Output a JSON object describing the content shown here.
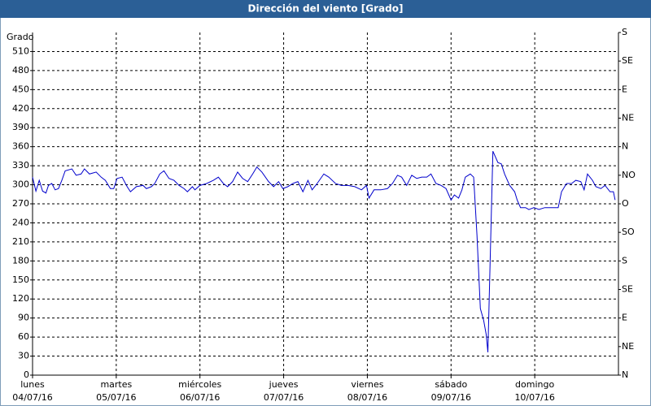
{
  "chart_data": {
    "type": "line",
    "title": "Dirección del viento [Grado]",
    "y_label": "Grado",
    "color": "#0000cc",
    "grid": true,
    "xlim": [
      0,
      7
    ],
    "xticks": [
      {
        "value": 0,
        "label": "lunes"
      },
      {
        "value": 1,
        "label": "martes"
      },
      {
        "value": 2,
        "label": "miércoles"
      },
      {
        "value": 3,
        "label": "jueves"
      },
      {
        "value": 4,
        "label": "viernes"
      },
      {
        "value": 5,
        "label": "sábado"
      },
      {
        "value": 6,
        "label": "domingo"
      }
    ],
    "xtick_dates": [
      "04/07/16",
      "05/07/16",
      "06/07/16",
      "07/07/16",
      "08/07/16",
      "09/07/16",
      "10/07/16"
    ],
    "ylim": [
      0,
      540
    ],
    "yticks": [
      0,
      30,
      60,
      90,
      120,
      150,
      180,
      210,
      240,
      270,
      300,
      330,
      360,
      390,
      420,
      450,
      480,
      510
    ],
    "y2lim": [
      0,
      540
    ],
    "y2ticks": [
      {
        "value": 0,
        "label": "N"
      },
      {
        "value": 45,
        "label": "NE"
      },
      {
        "value": 90,
        "label": "E"
      },
      {
        "value": 135,
        "label": "SE"
      },
      {
        "value": 180,
        "label": "S"
      },
      {
        "value": 225,
        "label": "SO"
      },
      {
        "value": 270,
        "label": "O"
      },
      {
        "value": 315,
        "label": "NO"
      },
      {
        "value": 360,
        "label": "N"
      },
      {
        "value": 405,
        "label": "NE"
      },
      {
        "value": 450,
        "label": "E"
      },
      {
        "value": 495,
        "label": "SE"
      },
      {
        "value": 540,
        "label": "S"
      }
    ],
    "x": [
      0,
      0.04,
      0.08,
      0.12,
      0.16,
      0.19,
      0.23,
      0.27,
      0.31,
      0.35,
      0.39,
      0.47,
      0.52,
      0.58,
      0.62,
      0.68,
      0.76,
      0.82,
      0.87,
      0.93,
      0.97,
      1.01,
      1.07,
      1.13,
      1.17,
      1.24,
      1.32,
      1.36,
      1.42,
      1.46,
      1.52,
      1.57,
      1.63,
      1.69,
      1.75,
      1.81,
      1.85,
      1.91,
      1.94,
      2.0,
      2.08,
      2.16,
      2.22,
      2.28,
      2.33,
      2.39,
      2.45,
      2.51,
      2.57,
      2.63,
      2.68,
      2.74,
      2.82,
      2.88,
      2.94,
      2.99,
      3.05,
      3.11,
      3.17,
      3.23,
      3.29,
      3.34,
      3.4,
      3.48,
      3.54,
      3.62,
      3.69,
      3.77,
      3.85,
      3.93,
      3.99,
      4.02,
      4.08,
      4.16,
      4.24,
      4.3,
      4.36,
      4.41,
      4.47,
      4.53,
      4.59,
      4.65,
      4.71,
      4.76,
      4.82,
      4.88,
      4.94,
      5.0,
      5.04,
      5.09,
      5.13,
      5.17,
      5.23,
      5.27,
      5.31,
      5.35,
      5.39,
      5.42,
      5.44,
      5.47,
      5.5,
      5.56,
      5.6,
      5.64,
      5.7,
      5.76,
      5.79,
      5.83,
      5.89,
      5.93,
      5.99,
      6.05,
      6.12,
      6.2,
      6.28,
      6.32,
      6.38,
      6.44,
      6.49,
      6.55,
      6.59,
      6.63,
      6.69,
      6.73,
      6.79,
      6.84,
      6.9,
      6.94,
      6.96
    ],
    "values": [
      312,
      290,
      307,
      290,
      287,
      299,
      302,
      292,
      294,
      307,
      322,
      325,
      315,
      317,
      325,
      317,
      320,
      312,
      307,
      294,
      294,
      310,
      312,
      297,
      289,
      297,
      299,
      294,
      297,
      302,
      317,
      322,
      310,
      307,
      299,
      294,
      289,
      297,
      292,
      299,
      302,
      307,
      312,
      302,
      297,
      305,
      320,
      310,
      305,
      317,
      328,
      320,
      305,
      297,
      305,
      294,
      297,
      302,
      305,
      289,
      307,
      292,
      302,
      317,
      312,
      302,
      299,
      299,
      297,
      292,
      299,
      279,
      292,
      292,
      294,
      302,
      315,
      312,
      299,
      315,
      310,
      312,
      312,
      317,
      302,
      299,
      294,
      276,
      284,
      279,
      292,
      312,
      317,
      312,
      220,
      105,
      86,
      64,
      36,
      195,
      353,
      335,
      333,
      317,
      299,
      289,
      276,
      264,
      264,
      261,
      264,
      261,
      264,
      264,
      264,
      289,
      302,
      302,
      307,
      305,
      292,
      317,
      307,
      297,
      294,
      299,
      289,
      289,
      276
    ]
  }
}
